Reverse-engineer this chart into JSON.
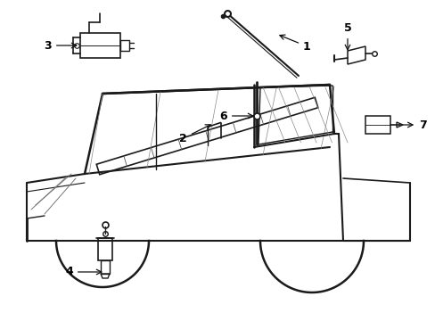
{
  "bg_color": "#ffffff",
  "line_color": "#1a1a1a",
  "label_color": "#000000",
  "fig_w": 4.89,
  "fig_h": 3.6,
  "dpi": 100
}
